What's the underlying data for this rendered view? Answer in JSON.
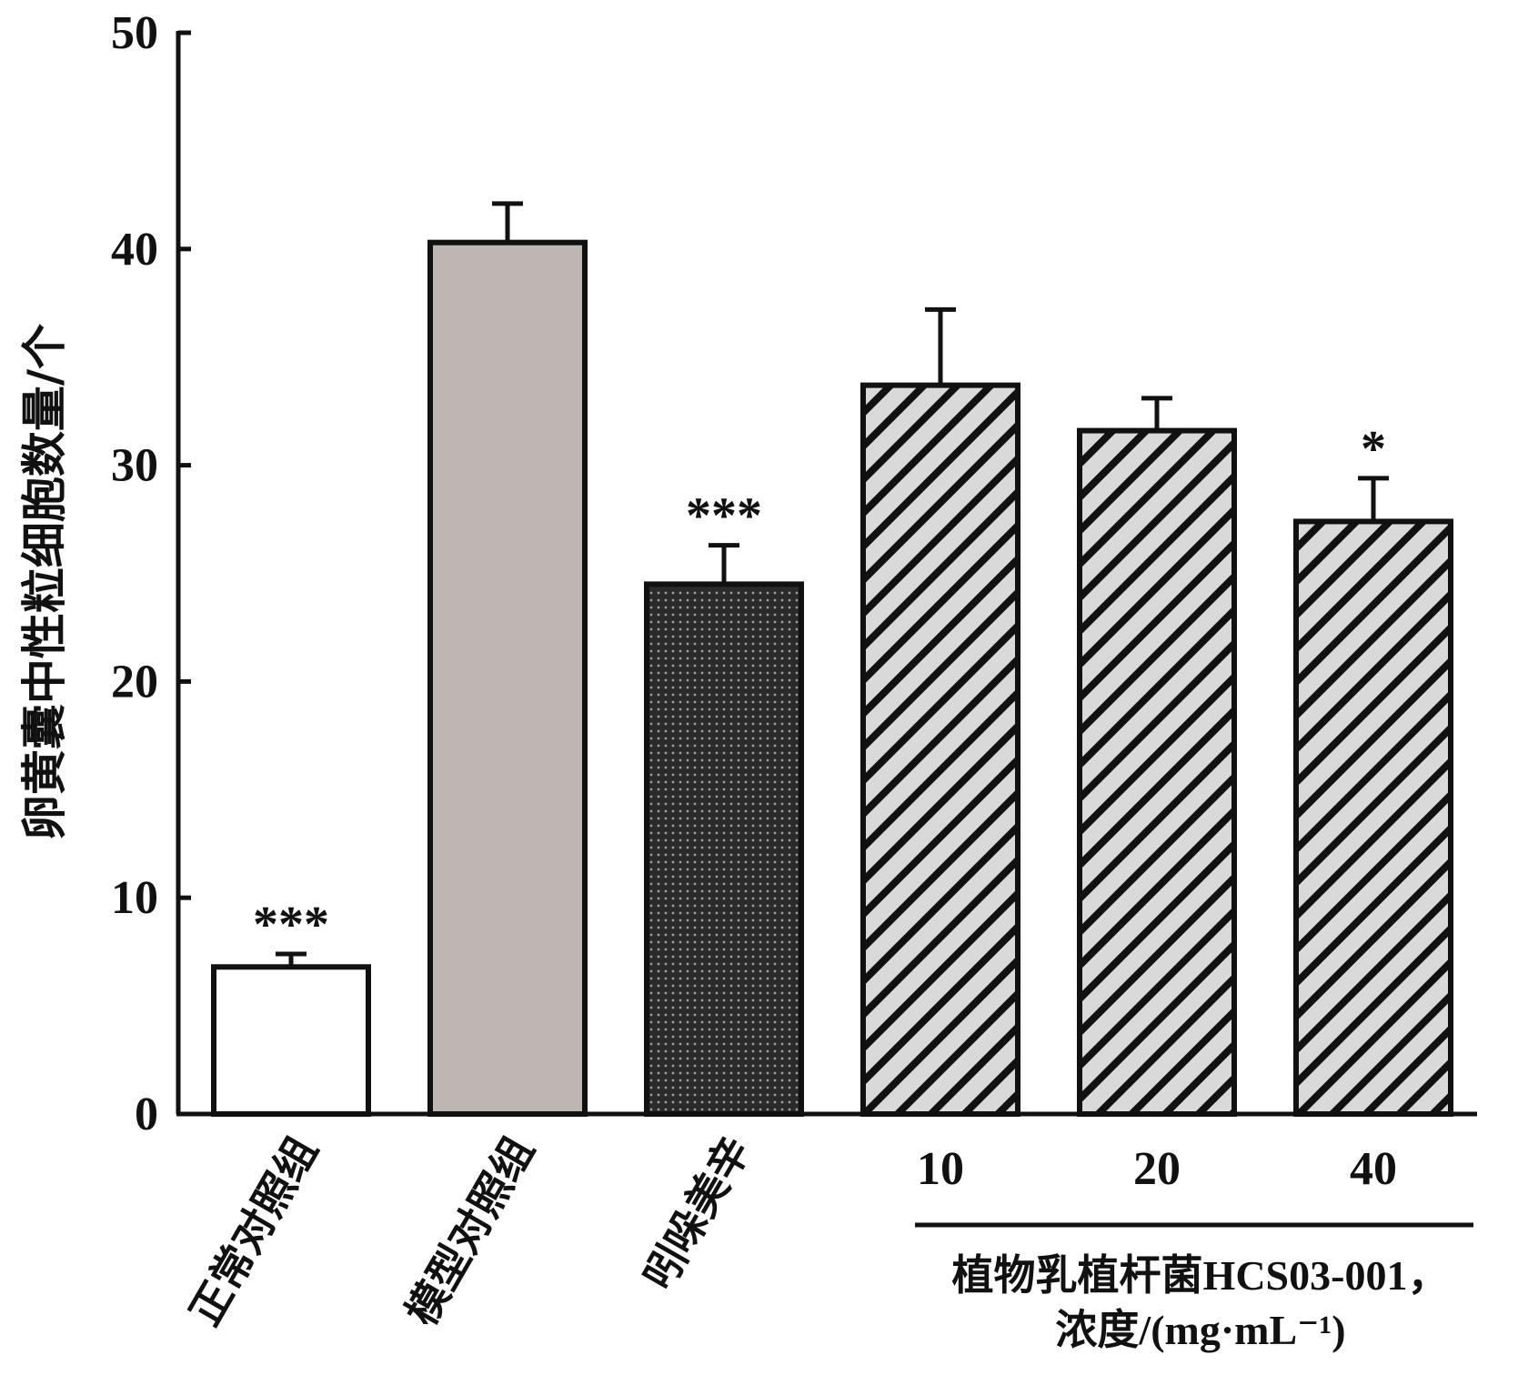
{
  "chart_data": {
    "type": "bar",
    "title": "",
    "ylabel": "卵黄囊中性粒细胞数量/个",
    "xlabel": "",
    "ylim": [
      0,
      50
    ],
    "yticks": [
      "0",
      "10",
      "20",
      "30",
      "40",
      "50"
    ],
    "grid": false,
    "categories": [
      "正常对照组",
      "模型对照组",
      "吲哚美辛",
      "10",
      "20",
      "40"
    ],
    "values": [
      6.8,
      40.3,
      24.5,
      33.7,
      31.6,
      27.4
    ],
    "errors": [
      0.6,
      1.8,
      1.8,
      3.5,
      1.5,
      2.0
    ],
    "significance": [
      "***",
      "",
      "***",
      "",
      "",
      "*"
    ],
    "fills": [
      "white",
      "gray",
      "dots",
      "hatch",
      "hatch",
      "hatch"
    ],
    "colors": {
      "gray": "#bdb6b3",
      "dots": "#2b2b2b",
      "hatch_bg": "#d9d9d9",
      "line": "#111111"
    },
    "group_label": {
      "line1": "植物乳植杆菌HCS03-001，",
      "line2": "浓度/(mg·mL⁻¹)",
      "applies_to": [
        "10",
        "20",
        "40"
      ]
    }
  }
}
